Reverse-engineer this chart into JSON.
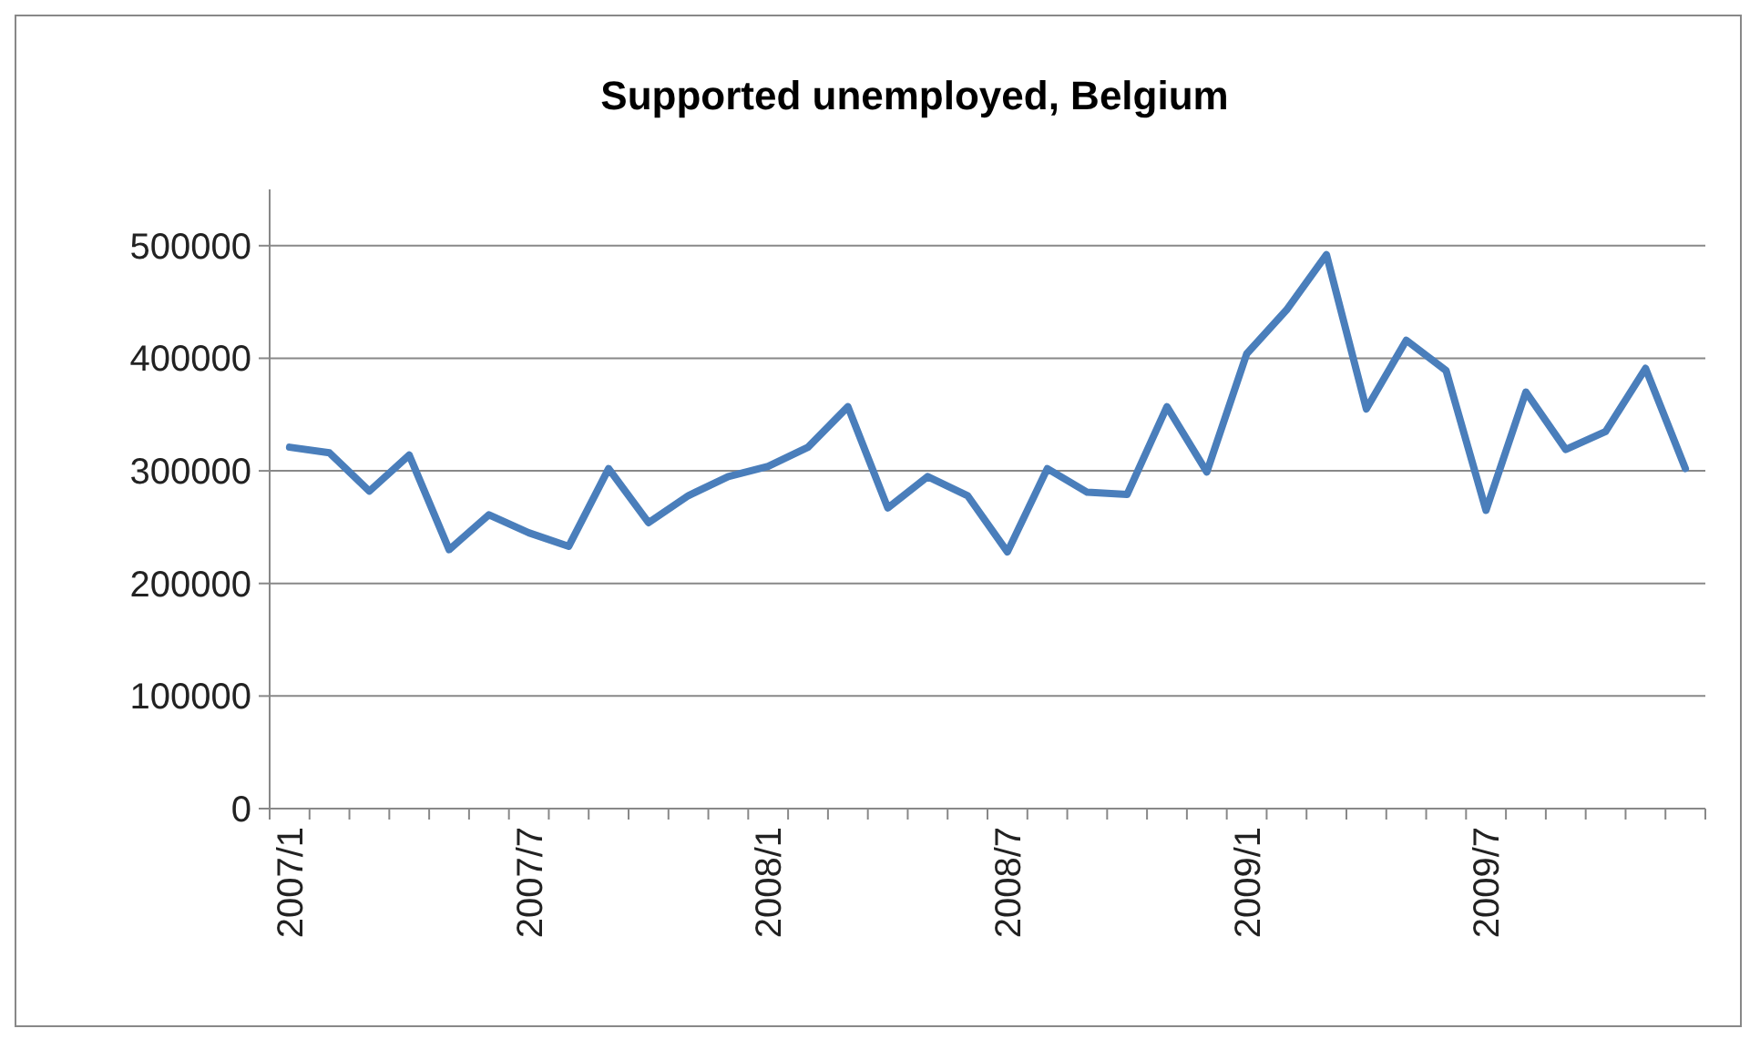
{
  "chart_data": {
    "type": "line",
    "title": "Supported unemployed, Belgium",
    "categories": [
      "2007/1",
      null,
      null,
      null,
      null,
      null,
      "2007/7",
      null,
      null,
      null,
      null,
      null,
      "2008/1",
      null,
      null,
      null,
      null,
      null,
      "2008/7",
      null,
      null,
      null,
      null,
      null,
      "2009/1",
      null,
      null,
      null,
      null,
      null,
      "2009/7",
      null,
      null,
      null,
      null,
      null
    ],
    "series": [
      {
        "color": "#4a7ebb",
        "values": [
          321000,
          316000,
          282000,
          314000,
          230000,
          261000,
          245000,
          233000,
          302000,
          254000,
          278000,
          295000,
          304000,
          321000,
          357000,
          267000,
          295000,
          278000,
          228000,
          302000,
          281000,
          279000,
          357000,
          299000,
          404000,
          443000,
          492000,
          355000,
          416000,
          389000,
          265000,
          370000,
          319000,
          335000,
          391000,
          302000
        ]
      }
    ],
    "ylim": [
      0,
      550000
    ],
    "yticks": [
      0,
      100000,
      200000,
      300000,
      400000,
      500000
    ],
    "grid": "y",
    "marker": "none",
    "line_style": "solid"
  }
}
